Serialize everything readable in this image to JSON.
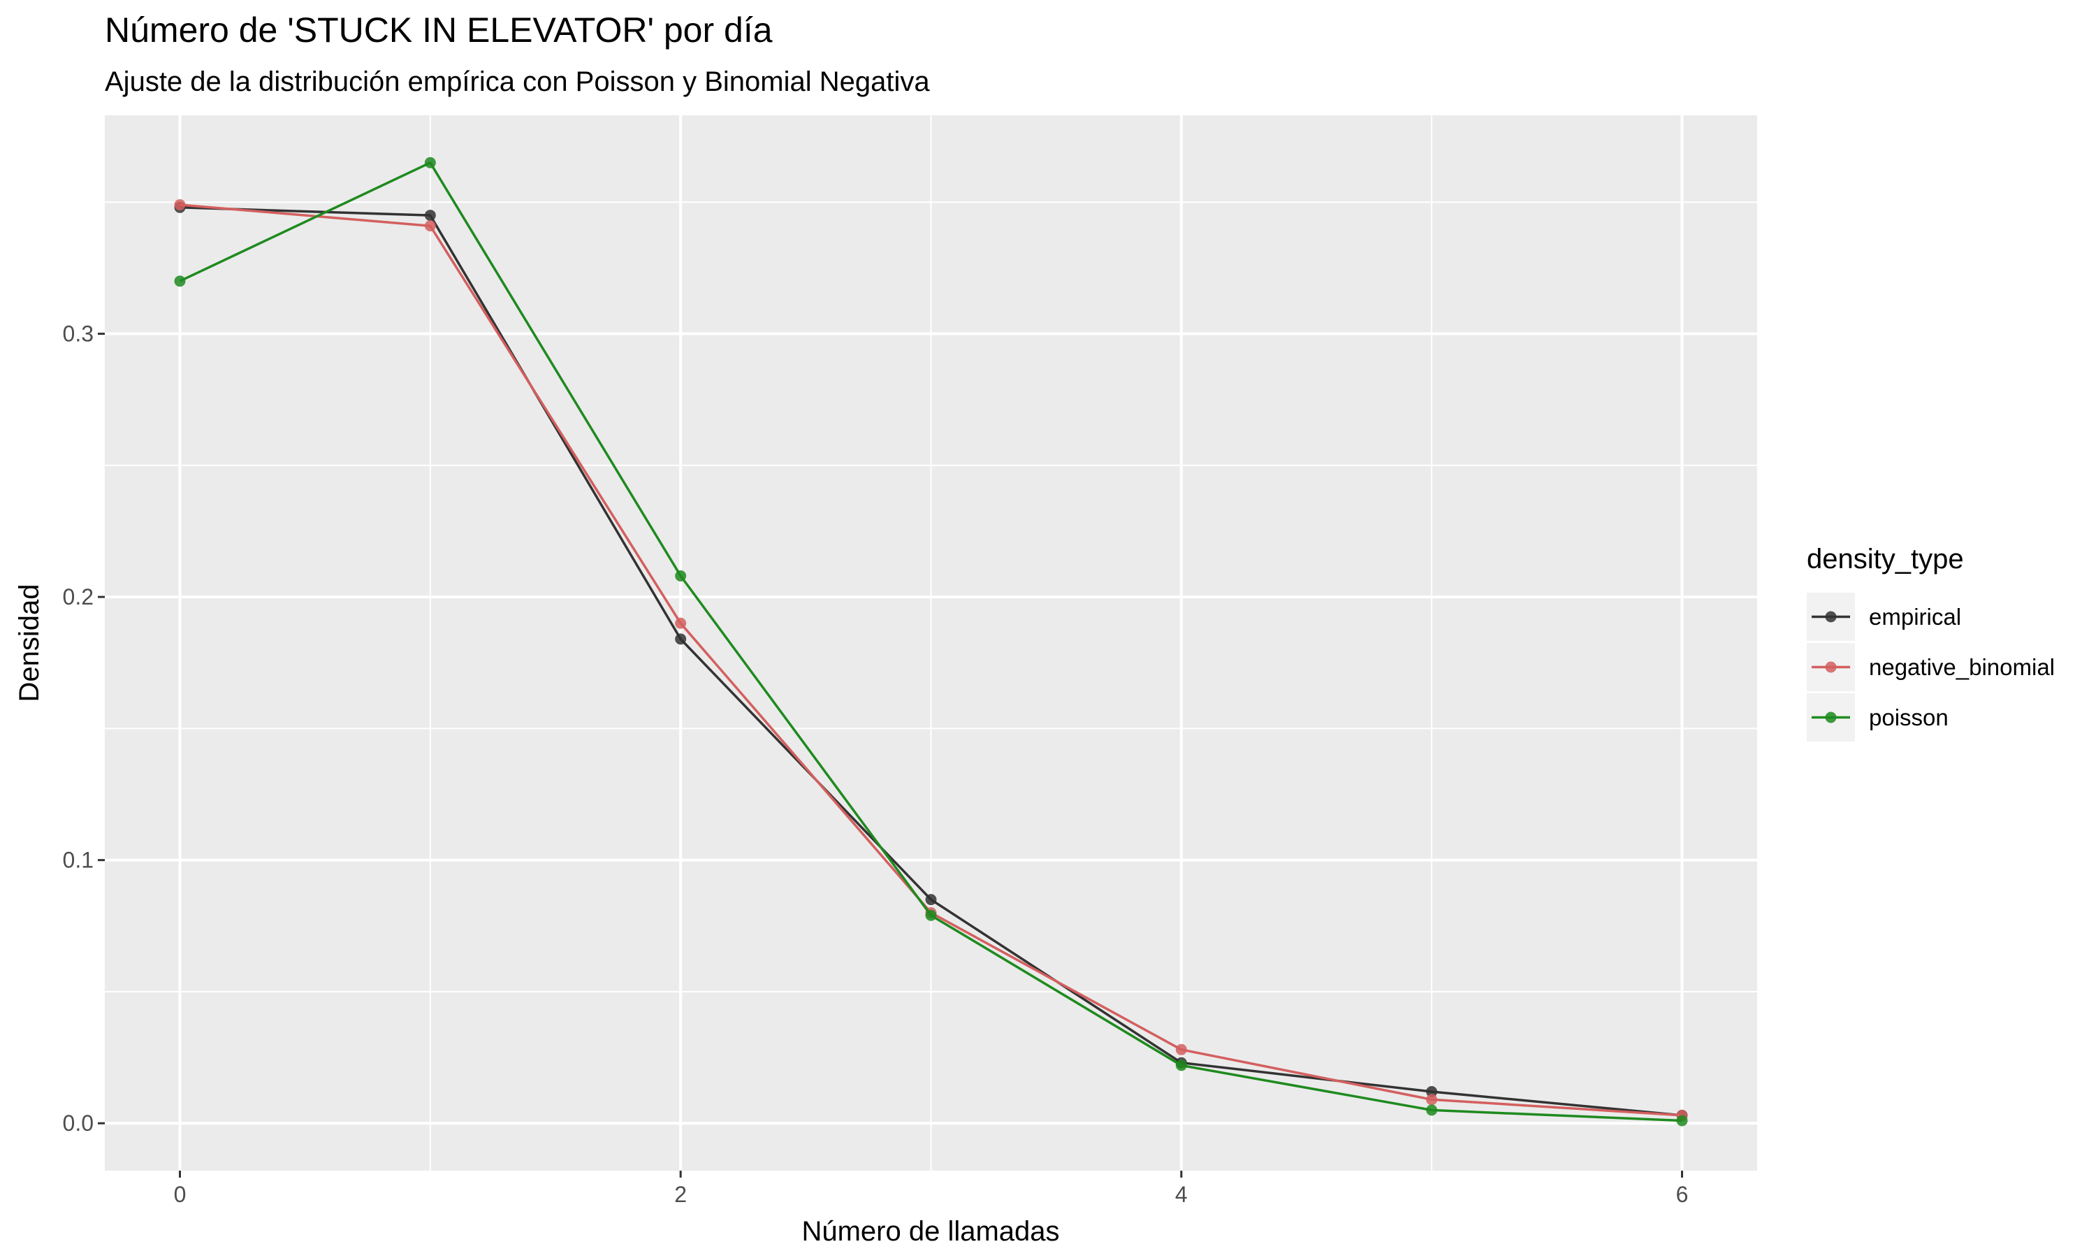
{
  "chart_data": {
    "type": "line",
    "title": "Número de 'STUCK IN ELEVATOR' por día",
    "subtitle": "Ajuste de la distribución empírica con Poisson y Binomial Negativa",
    "xlabel": "Número de llamadas",
    "ylabel": "Densidad",
    "xlim": [
      -0.3,
      6.3
    ],
    "ylim": [
      -0.018,
      0.383
    ],
    "x_ticks": [
      0,
      2,
      4,
      6
    ],
    "x_tick_labels": [
      "0",
      "2",
      "4",
      "6"
    ],
    "y_ticks": [
      0.0,
      0.1,
      0.2,
      0.3
    ],
    "y_tick_labels": [
      "0.0",
      "0.1",
      "0.2",
      "0.3"
    ],
    "x": [
      0,
      1,
      2,
      3,
      4,
      5,
      6
    ],
    "series": [
      {
        "name": "empirical",
        "color": "#333333",
        "values": [
          0.348,
          0.345,
          0.184,
          0.085,
          0.023,
          0.012,
          0.003
        ]
      },
      {
        "name": "negative_binomial",
        "color": "#d45f5f",
        "values": [
          0.349,
          0.341,
          0.19,
          0.08,
          0.028,
          0.009,
          0.003
        ]
      },
      {
        "name": "poisson",
        "color": "#1f8a1f",
        "values": [
          0.32,
          0.365,
          0.208,
          0.079,
          0.022,
          0.005,
          0.001
        ]
      }
    ],
    "grid": true,
    "legend": {
      "title": "density_type",
      "position": "right"
    }
  }
}
